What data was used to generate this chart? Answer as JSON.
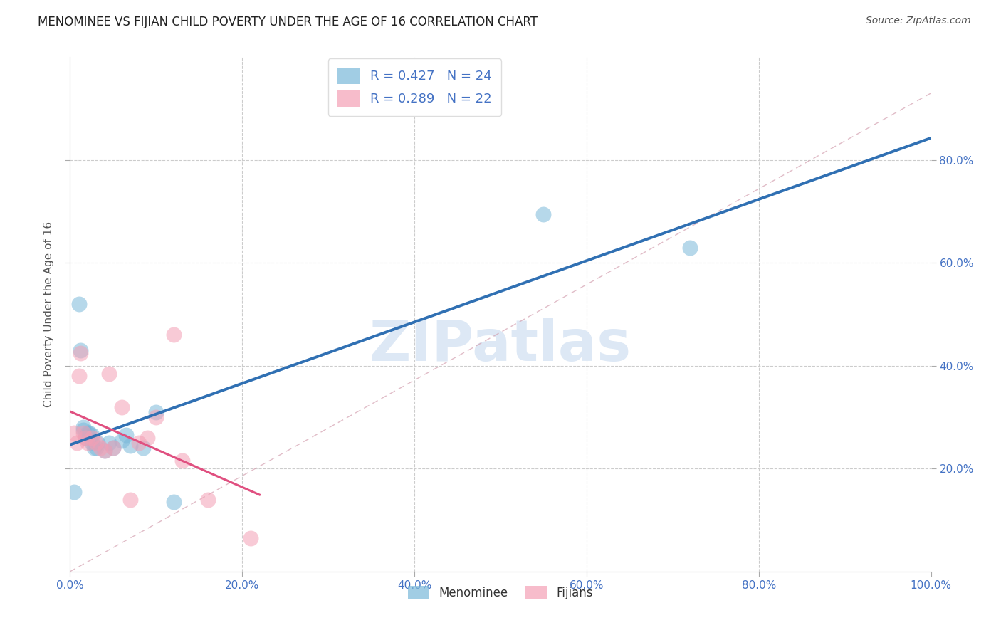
{
  "title": "MENOMINEE VS FIJIAN CHILD POVERTY UNDER THE AGE OF 16 CORRELATION CHART",
  "source": "Source: ZipAtlas.com",
  "ylabel": "Child Poverty Under the Age of 16",
  "xlim": [
    0,
    1.0
  ],
  "ylim": [
    0,
    1.0
  ],
  "menominee_R": 0.427,
  "menominee_N": 24,
  "fijian_R": 0.289,
  "fijian_N": 22,
  "menominee_color": "#7ab8d9",
  "fijian_color": "#f4a0b5",
  "menominee_line_color": "#3070b3",
  "fijian_line_color": "#e05080",
  "diagonal_color": "#d4aabb",
  "watermark": "ZIPatlas",
  "menominee_x": [
    0.005,
    0.01,
    0.012,
    0.015,
    0.015,
    0.018,
    0.02,
    0.022,
    0.025,
    0.025,
    0.028,
    0.03,
    0.032,
    0.04,
    0.045,
    0.05,
    0.06,
    0.065,
    0.07,
    0.085,
    0.1,
    0.12,
    0.55,
    0.72
  ],
  "menominee_y": [
    0.155,
    0.52,
    0.43,
    0.275,
    0.28,
    0.26,
    0.27,
    0.27,
    0.265,
    0.25,
    0.24,
    0.24,
    0.25,
    0.235,
    0.25,
    0.24,
    0.255,
    0.265,
    0.245,
    0.24,
    0.31,
    0.135,
    0.695,
    0.63
  ],
  "fijian_x": [
    0.005,
    0.008,
    0.01,
    0.012,
    0.015,
    0.018,
    0.02,
    0.025,
    0.03,
    0.035,
    0.04,
    0.045,
    0.05,
    0.06,
    0.07,
    0.08,
    0.09,
    0.1,
    0.12,
    0.13,
    0.16,
    0.21
  ],
  "fijian_y": [
    0.27,
    0.25,
    0.38,
    0.425,
    0.27,
    0.26,
    0.25,
    0.26,
    0.25,
    0.24,
    0.235,
    0.385,
    0.24,
    0.32,
    0.14,
    0.25,
    0.26,
    0.3,
    0.46,
    0.215,
    0.14,
    0.065
  ]
}
